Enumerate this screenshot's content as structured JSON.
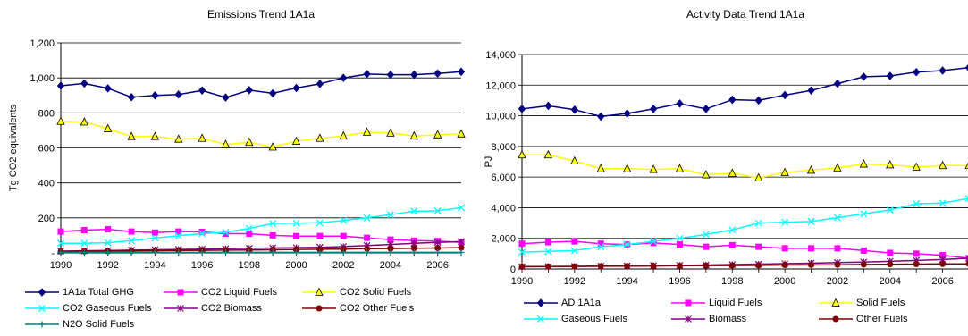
{
  "chart_data": [
    {
      "type": "line",
      "title": "Emissions Trend 1A1a",
      "xlabel": "",
      "ylabel": "Tg CO2 equivalents",
      "x": [
        1990,
        1991,
        1992,
        1993,
        1994,
        1995,
        1996,
        1997,
        1998,
        1999,
        2000,
        2001,
        2002,
        2003,
        2004,
        2005,
        2006,
        2007
      ],
      "x_ticks": [
        "1990",
        "1992",
        "1994",
        "1996",
        "1998",
        "2000",
        "2002",
        "2004",
        "2006"
      ],
      "ylim": [
        0,
        1200
      ],
      "y_ticks": [
        "-",
        "200",
        "400",
        "600",
        "800",
        "1,000",
        "1,200"
      ],
      "grid": true,
      "legend_position": "bottom",
      "series": [
        {
          "name": "1A1a Total GHG",
          "color": "#000080",
          "marker": "diamond",
          "values": [
            955,
            968,
            940,
            890,
            900,
            905,
            928,
            888,
            930,
            912,
            942,
            966,
            1000,
            1022,
            1018,
            1018,
            1025,
            1035
          ]
        },
        {
          "name": "CO2 Liquid Fuels",
          "color": "#FF00FF",
          "marker": "square",
          "values": [
            122,
            130,
            135,
            122,
            116,
            122,
            120,
            110,
            110,
            100,
            96,
            96,
            96,
            86,
            76,
            70,
            68,
            60
          ]
        },
        {
          "name": "CO2 Solid Fuels",
          "color": "#FFFF00",
          "marker": "triangle",
          "values": [
            752,
            748,
            710,
            665,
            665,
            650,
            655,
            620,
            632,
            605,
            638,
            655,
            668,
            690,
            685,
            668,
            675,
            680
          ]
        },
        {
          "name": "CO2 Gaseous Fuels",
          "color": "#00FFFF",
          "marker": "x",
          "values": [
            55,
            55,
            58,
            70,
            85,
            98,
            110,
            118,
            140,
            168,
            170,
            172,
            185,
            200,
            218,
            238,
            240,
            258
          ]
        },
        {
          "name": "CO2 Biomass",
          "color": "#800080",
          "marker": "star",
          "values": [
            10,
            12,
            14,
            16,
            18,
            20,
            22,
            24,
            26,
            28,
            30,
            32,
            36,
            42,
            48,
            55,
            60,
            65
          ]
        },
        {
          "name": "CO2 Other Fuels",
          "color": "#800000",
          "marker": "circle",
          "values": [
            8,
            9,
            10,
            11,
            13,
            14,
            15,
            16,
            17,
            18,
            20,
            21,
            22,
            24,
            25,
            27,
            28,
            30
          ]
        },
        {
          "name": "N2O Solid Fuels",
          "color": "#008080",
          "marker": "plus",
          "values": [
            3,
            3,
            3,
            3,
            3,
            3,
            3,
            3,
            3,
            3,
            3,
            3,
            3,
            3,
            3,
            3,
            3,
            3
          ]
        }
      ]
    },
    {
      "type": "line",
      "title": "Activity Data Trend 1A1a",
      "xlabel": "",
      "ylabel": "PJ",
      "x": [
        1990,
        1991,
        1992,
        1993,
        1994,
        1995,
        1996,
        1997,
        1998,
        1999,
        2000,
        2001,
        2002,
        2003,
        2004,
        2005,
        2006,
        2007
      ],
      "x_ticks": [
        "1990",
        "1992",
        "1994",
        "1996",
        "1998",
        "2000",
        "2002",
        "2004",
        "2006"
      ],
      "ylim": [
        0,
        14000
      ],
      "y_ticks": [
        "0",
        "2,000",
        "4,000",
        "6,000",
        "8,000",
        "10,000",
        "12,000",
        "14,000"
      ],
      "grid": true,
      "legend_position": "bottom",
      "series": [
        {
          "name": "AD 1A1a",
          "color": "#000080",
          "marker": "diamond",
          "values": [
            10450,
            10650,
            10400,
            9950,
            10150,
            10450,
            10800,
            10450,
            11050,
            11000,
            11350,
            11650,
            12100,
            12550,
            12600,
            12850,
            12950,
            13150
          ]
        },
        {
          "name": "Liquid Fuels",
          "color": "#FF00FF",
          "marker": "square",
          "values": [
            1650,
            1750,
            1800,
            1650,
            1600,
            1700,
            1600,
            1450,
            1550,
            1450,
            1350,
            1350,
            1350,
            1200,
            1050,
            1000,
            900,
            700
          ]
        },
        {
          "name": "Solid Fuels",
          "color": "#FFFF00",
          "marker": "triangle",
          "values": [
            7450,
            7450,
            7050,
            6550,
            6550,
            6500,
            6550,
            6150,
            6250,
            5950,
            6300,
            6450,
            6600,
            6850,
            6800,
            6650,
            6750,
            6750
          ]
        },
        {
          "name": "Gaseous Fuels",
          "color": "#00FFFF",
          "marker": "x",
          "values": [
            1100,
            1150,
            1200,
            1450,
            1600,
            1800,
            2000,
            2250,
            2550,
            3000,
            3050,
            3100,
            3350,
            3600,
            3850,
            4250,
            4300,
            4600
          ]
        },
        {
          "name": "Biomass",
          "color": "#800080",
          "marker": "star",
          "values": [
            150,
            160,
            170,
            190,
            200,
            220,
            240,
            260,
            290,
            320,
            350,
            380,
            420,
            450,
            500,
            560,
            620,
            700
          ]
        },
        {
          "name": "Other Fuels",
          "color": "#800000",
          "marker": "circle",
          "values": [
            150,
            160,
            170,
            180,
            190,
            200,
            210,
            220,
            230,
            240,
            260,
            270,
            280,
            300,
            310,
            320,
            330,
            340
          ]
        }
      ]
    }
  ]
}
